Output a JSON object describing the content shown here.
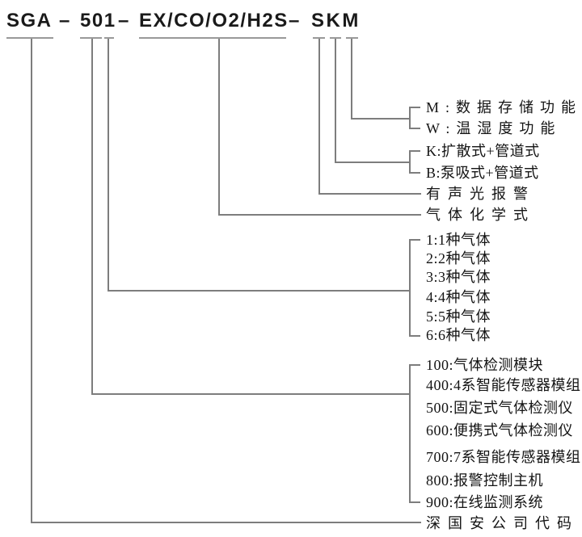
{
  "model_code": {
    "company_prefix": "SGA",
    "series": "501",
    "gas_formula": "EX/CO/O2/H2S",
    "options": "SKM",
    "separator": "–"
  },
  "legend": {
    "option_m": "M:数据存储功能",
    "option_w": "W:温湿度功能",
    "option_k": "K:扩散式+管道式",
    "option_b": "B:泵吸式+管道式",
    "alarm": "有声光报警",
    "gas_formula_note": "气体化学式",
    "gas_counts": [
      "1:1种气体",
      "2:2种气体",
      "3:3种气体",
      "4:4种气体",
      "5:5种气体",
      "6:6种气体"
    ],
    "product_series": [
      "100:气体检测模块",
      "400:4系智能传感器模组",
      "500:固定式气体检测仪",
      "600:便携式气体检测仪",
      "700:7系智能传感器模组",
      "800:报警控制主机",
      "900:在线监测系统"
    ],
    "company_code": "深国安公司代码"
  },
  "colors": {
    "line": "#7d7d7d",
    "underline": "#999999",
    "text": "#141414",
    "background": "#ffffff"
  }
}
